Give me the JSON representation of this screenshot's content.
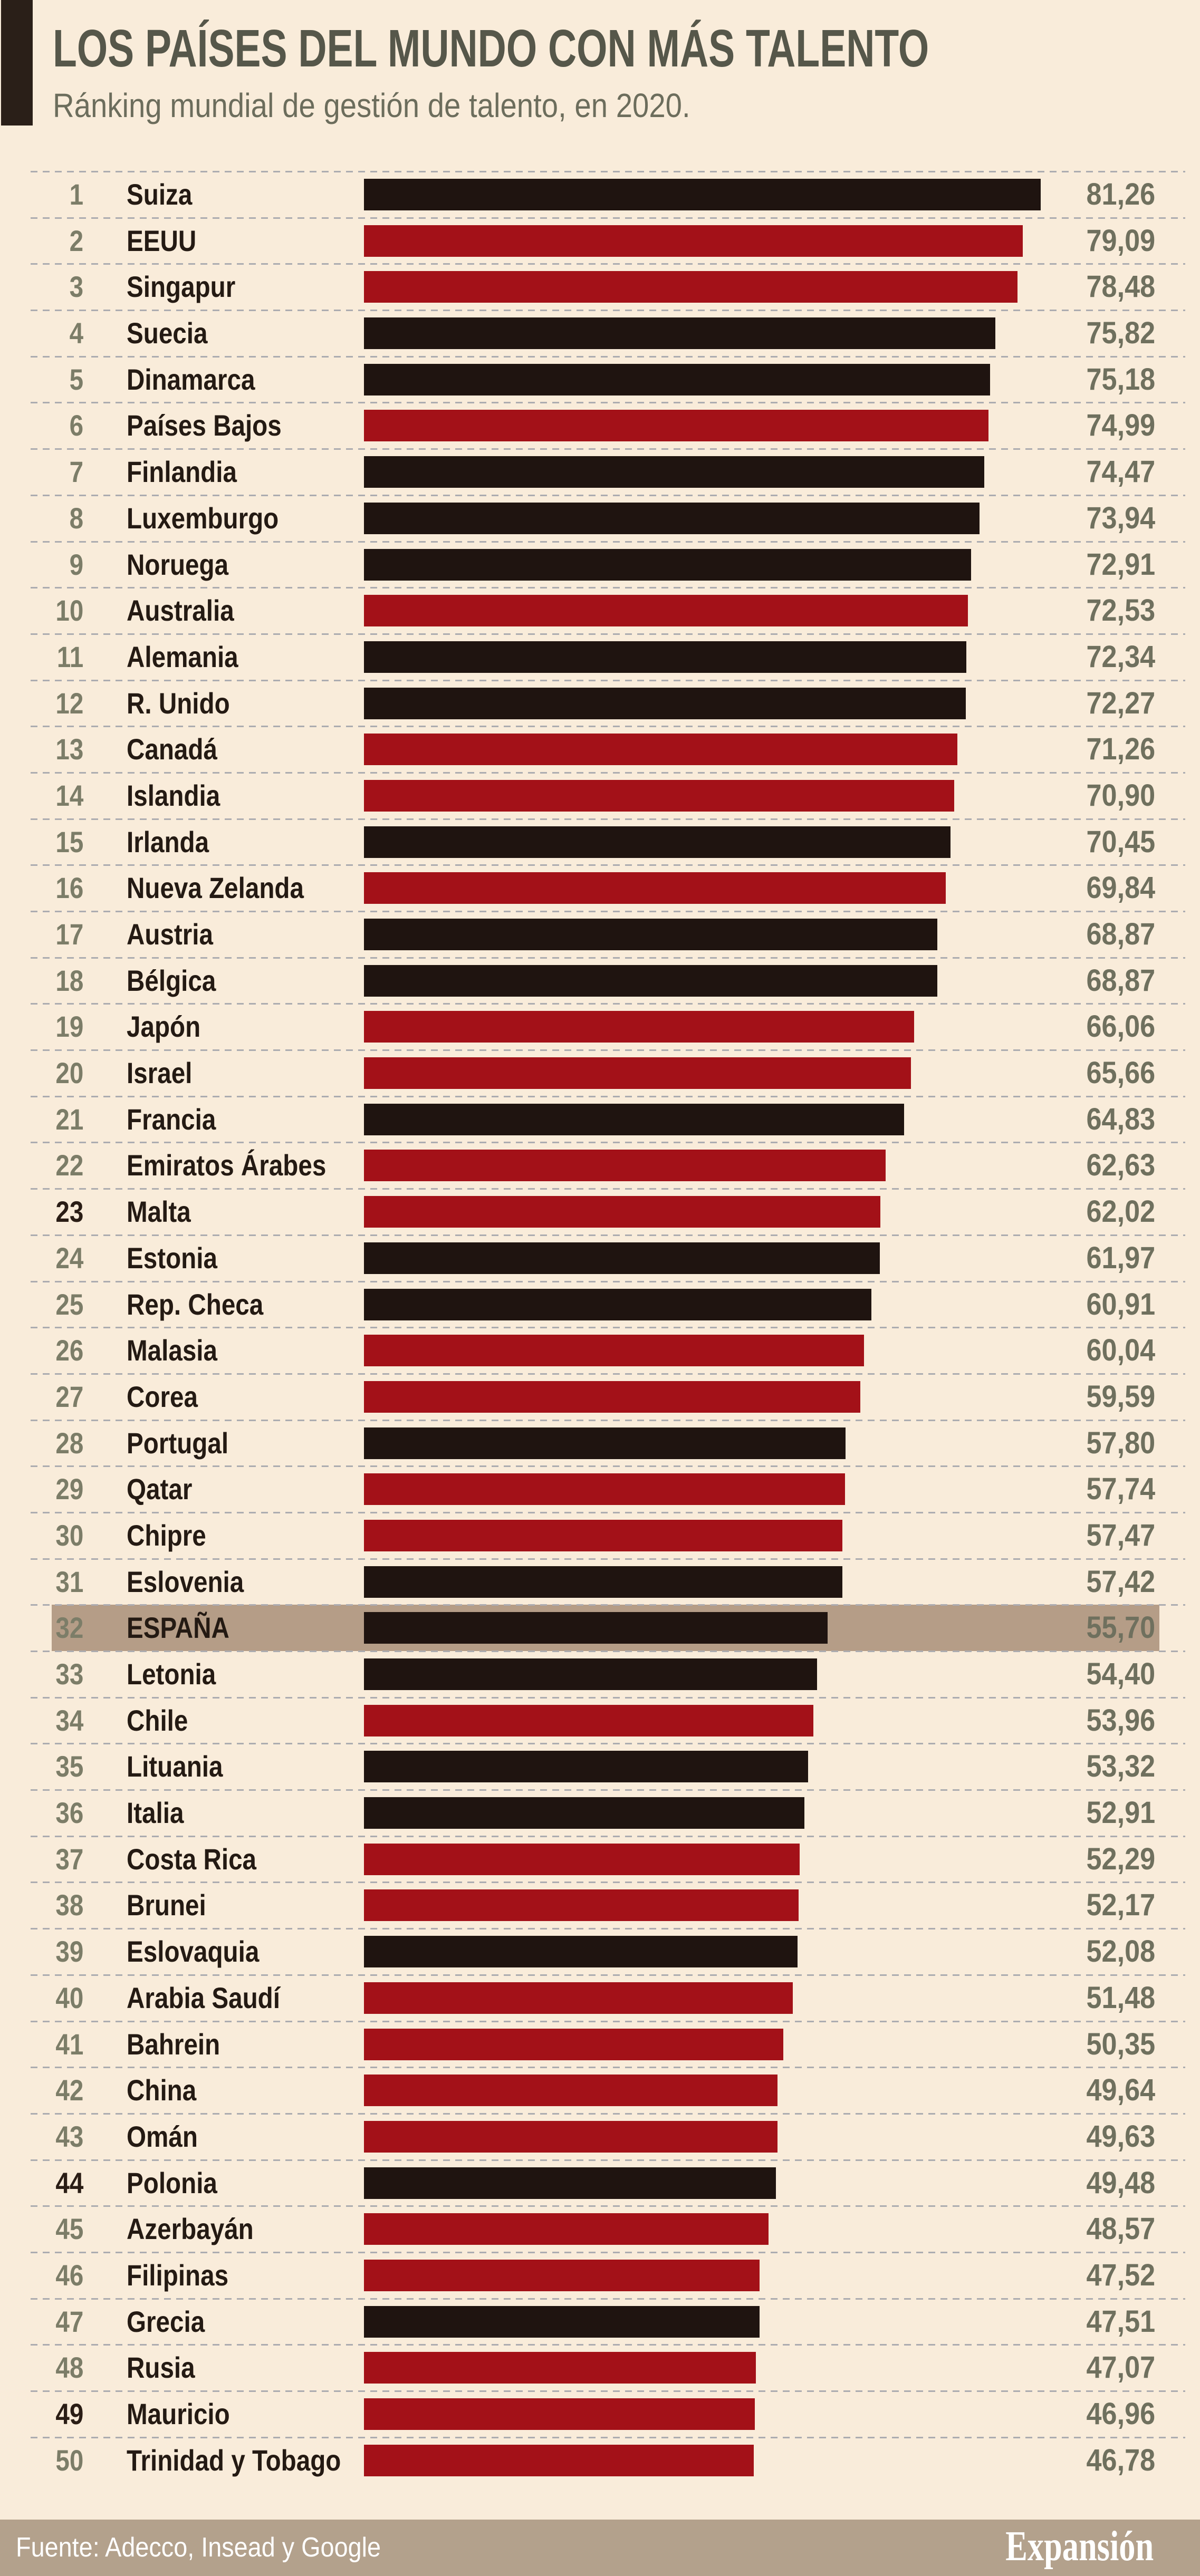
{
  "header": {
    "title": "LOS PAÍSES DEL MUNDO CON MÁS TALENTO",
    "subtitle": "Ránking mundial de gestión de talento, en 2020."
  },
  "footer": {
    "source": "Fuente: Adecco, Insead y Google",
    "brand": "Expansión"
  },
  "colors": {
    "background": "#f9ecda",
    "header_block": "#2a1f18",
    "title": "#56574a",
    "subtitle": "#6c6d5c",
    "rank": "#7c7d68",
    "rank_dark": "#2a1d15",
    "country": "#241a13",
    "value": "#6f705e",
    "dash": "#acacb0",
    "bar_black": "#1f1410",
    "bar_red": "#a31118",
    "highlight_band": "#b59d87",
    "footer_band": "#b3a18c",
    "footer_text": "#ffffff"
  },
  "rows": [
    {
      "rank": "1",
      "country": "Suiza",
      "value": "81,26"
    },
    {
      "rank": "2",
      "country": "EEUU",
      "value": "79,09"
    },
    {
      "rank": "3",
      "country": "Singapur",
      "value": "78,48"
    },
    {
      "rank": "4",
      "country": "Suecia",
      "value": "75,82"
    },
    {
      "rank": "5",
      "country": "Dinamarca",
      "value": "75,18"
    },
    {
      "rank": "6",
      "country": "Países Bajos",
      "value": "74,99"
    },
    {
      "rank": "7",
      "country": "Finlandia",
      "value": "74,47"
    },
    {
      "rank": "8",
      "country": "Luxemburgo",
      "value": "73,94"
    },
    {
      "rank": "9",
      "country": "Noruega",
      "value": "72,91"
    },
    {
      "rank": "10",
      "country": "Australia",
      "value": "72,53"
    },
    {
      "rank": "11",
      "country": "Alemania",
      "value": "72,34"
    },
    {
      "rank": "12",
      "country": "R. Unido",
      "value": "72,27"
    },
    {
      "rank": "13",
      "country": "Canadá",
      "value": "71,26"
    },
    {
      "rank": "14",
      "country": "Islandia",
      "value": "70,90"
    },
    {
      "rank": "15",
      "country": "Irlanda",
      "value": "70,45"
    },
    {
      "rank": "16",
      "country": "Nueva Zelanda",
      "value": "69,84"
    },
    {
      "rank": "17",
      "country": "Austria",
      "value": "68,87"
    },
    {
      "rank": "18",
      "country": "Bélgica",
      "value": "68,87"
    },
    {
      "rank": "19",
      "country": "Japón",
      "value": "66,06"
    },
    {
      "rank": "20",
      "country": "Israel",
      "value": "65,66"
    },
    {
      "rank": "21",
      "country": "Francia",
      "value": "64,83"
    },
    {
      "rank": "22",
      "country": "Emiratos Árabes",
      "value": "62,63"
    },
    {
      "rank": "23",
      "country": "Malta",
      "value": "62,02",
      "dark_rank": true
    },
    {
      "rank": "24",
      "country": "Estonia",
      "value": "61,97"
    },
    {
      "rank": "25",
      "country": "Rep. Checa",
      "value": "60,91"
    },
    {
      "rank": "26",
      "country": "Malasia",
      "value": "60,04"
    },
    {
      "rank": "27",
      "country": "Corea",
      "value": "59,59"
    },
    {
      "rank": "28",
      "country": "Portugal",
      "value": "57,80"
    },
    {
      "rank": "29",
      "country": "Qatar",
      "value": "57,74"
    },
    {
      "rank": "30",
      "country": "Chipre",
      "value": "57,47"
    },
    {
      "rank": "31",
      "country": "Eslovenia",
      "value": "57,42"
    },
    {
      "rank": "32",
      "country": "ESPAÑA",
      "value": "55,70",
      "highlight": true
    },
    {
      "rank": "33",
      "country": "Letonia",
      "value": "54,40"
    },
    {
      "rank": "34",
      "country": "Chile",
      "value": "53,96"
    },
    {
      "rank": "35",
      "country": "Lituania",
      "value": "53,32"
    },
    {
      "rank": "36",
      "country": "Italia",
      "value": "52,91"
    },
    {
      "rank": "37",
      "country": "Costa Rica",
      "value": "52,29"
    },
    {
      "rank": "38",
      "country": "Brunei",
      "value": "52,17"
    },
    {
      "rank": "39",
      "country": "Eslovaquia",
      "value": "52,08"
    },
    {
      "rank": "40",
      "country": "Arabia Saudí",
      "value": "51,48"
    },
    {
      "rank": "41",
      "country": "Bahrein",
      "value": "50,35"
    },
    {
      "rank": "42",
      "country": "China",
      "value": "49,64"
    },
    {
      "rank": "43",
      "country": "Omán",
      "value": "49,63"
    },
    {
      "rank": "44",
      "country": "Polonia",
      "value": "49,48",
      "dark_rank": true
    },
    {
      "rank": "45",
      "country": "Azerbayán",
      "value": "48,57"
    },
    {
      "rank": "46",
      "country": "Filipinas",
      "value": "47,52"
    },
    {
      "rank": "47",
      "country": "Grecia",
      "value": "47,51"
    },
    {
      "rank": "48",
      "country": "Rusia",
      "value": "47,07"
    },
    {
      "rank": "49",
      "country": "Mauricio",
      "value": "46,96",
      "dark_rank": true
    },
    {
      "rank": "50",
      "country": "Trinidad y Tobago",
      "value": "46,78"
    }
  ],
  "chart_data": {
    "type": "bar",
    "orientation": "horizontal",
    "title": "LOS PAÍSES DEL MUNDO CON MÁS TALENTO",
    "subtitle": "Ránking mundial de gestión de talento, en 2020.",
    "source": "Fuente: Adecco, Insead y Google",
    "categories": [
      "Suiza",
      "EEUU",
      "Singapur",
      "Suecia",
      "Dinamarca",
      "Países Bajos",
      "Finlandia",
      "Luxemburgo",
      "Noruega",
      "Australia",
      "Alemania",
      "R. Unido",
      "Canadá",
      "Islandia",
      "Irlanda",
      "Nueva Zelanda",
      "Austria",
      "Bélgica",
      "Japón",
      "Israel",
      "Francia",
      "Emiratos Árabes",
      "Malta",
      "Estonia",
      "Rep. Checa",
      "Malasia",
      "Corea",
      "Portugal",
      "Qatar",
      "Chipre",
      "Eslovenia",
      "ESPAÑA",
      "Letonia",
      "Chile",
      "Lituania",
      "Italia",
      "Costa Rica",
      "Brunei",
      "Eslovaquia",
      "Arabia Saudí",
      "Bahrein",
      "China",
      "Omán",
      "Polonia",
      "Azerbayán",
      "Filipinas",
      "Grecia",
      "Rusia",
      "Mauricio",
      "Trinidad y Tobago"
    ],
    "values": [
      81.26,
      79.09,
      78.48,
      75.82,
      75.18,
      74.99,
      74.47,
      73.94,
      72.91,
      72.53,
      72.34,
      72.27,
      71.26,
      70.9,
      70.45,
      69.84,
      68.87,
      68.87,
      66.06,
      65.66,
      64.83,
      62.63,
      62.02,
      61.97,
      60.91,
      60.04,
      59.59,
      57.8,
      57.74,
      57.47,
      57.42,
      55.7,
      54.4,
      53.96,
      53.32,
      52.91,
      52.29,
      52.17,
      52.08,
      51.48,
      50.35,
      49.64,
      49.63,
      49.48,
      48.57,
      47.52,
      47.51,
      47.07,
      46.96,
      46.78
    ],
    "bar_colors": [
      "black",
      "red",
      "red",
      "black",
      "black",
      "red",
      "black",
      "black",
      "black",
      "red",
      "black",
      "black",
      "red",
      "red",
      "black",
      "red",
      "black",
      "black",
      "red",
      "red",
      "black",
      "red",
      "red",
      "black",
      "black",
      "red",
      "red",
      "black",
      "red",
      "red",
      "black",
      "black",
      "black",
      "red",
      "black",
      "black",
      "red",
      "red",
      "black",
      "red",
      "red",
      "red",
      "red",
      "black",
      "red",
      "red",
      "black",
      "red",
      "red",
      "red"
    ],
    "highlight_category": "ESPAÑA",
    "highlight_index": 31,
    "xlim": [
      0,
      81.26
    ],
    "grid": false,
    "legend": false,
    "value_format": "decimal-comma, 2 decimals"
  }
}
